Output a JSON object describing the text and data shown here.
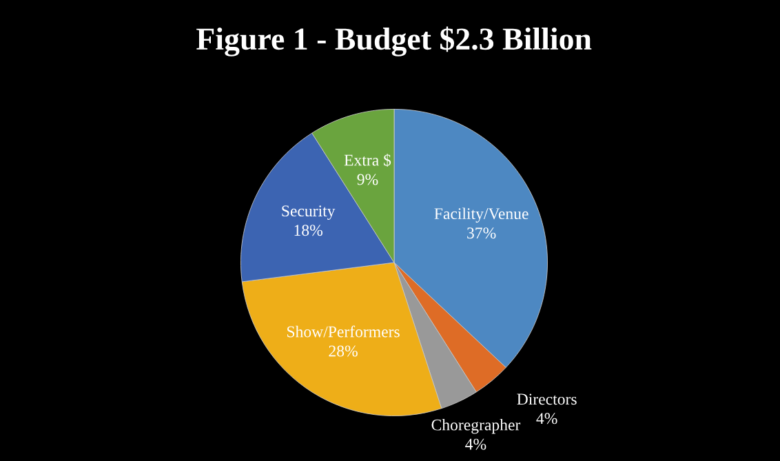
{
  "chart_data": {
    "type": "pie",
    "title": "Figure 1 - Budget $2.3 Billion",
    "categories": [
      "Facility/Venue",
      "Directors",
      "Choregrapher",
      "Show/Performers",
      "Security",
      "Extra $"
    ],
    "values": [
      37,
      4,
      4,
      28,
      18,
      9
    ],
    "colors": [
      "#4d88c2",
      "#de6c26",
      "#999999",
      "#eeae18",
      "#3c64b2",
      "#6aa43e"
    ],
    "value_labels": [
      "37%",
      "4%",
      "4%",
      "28%",
      "18%",
      "9%"
    ],
    "legend": false
  }
}
